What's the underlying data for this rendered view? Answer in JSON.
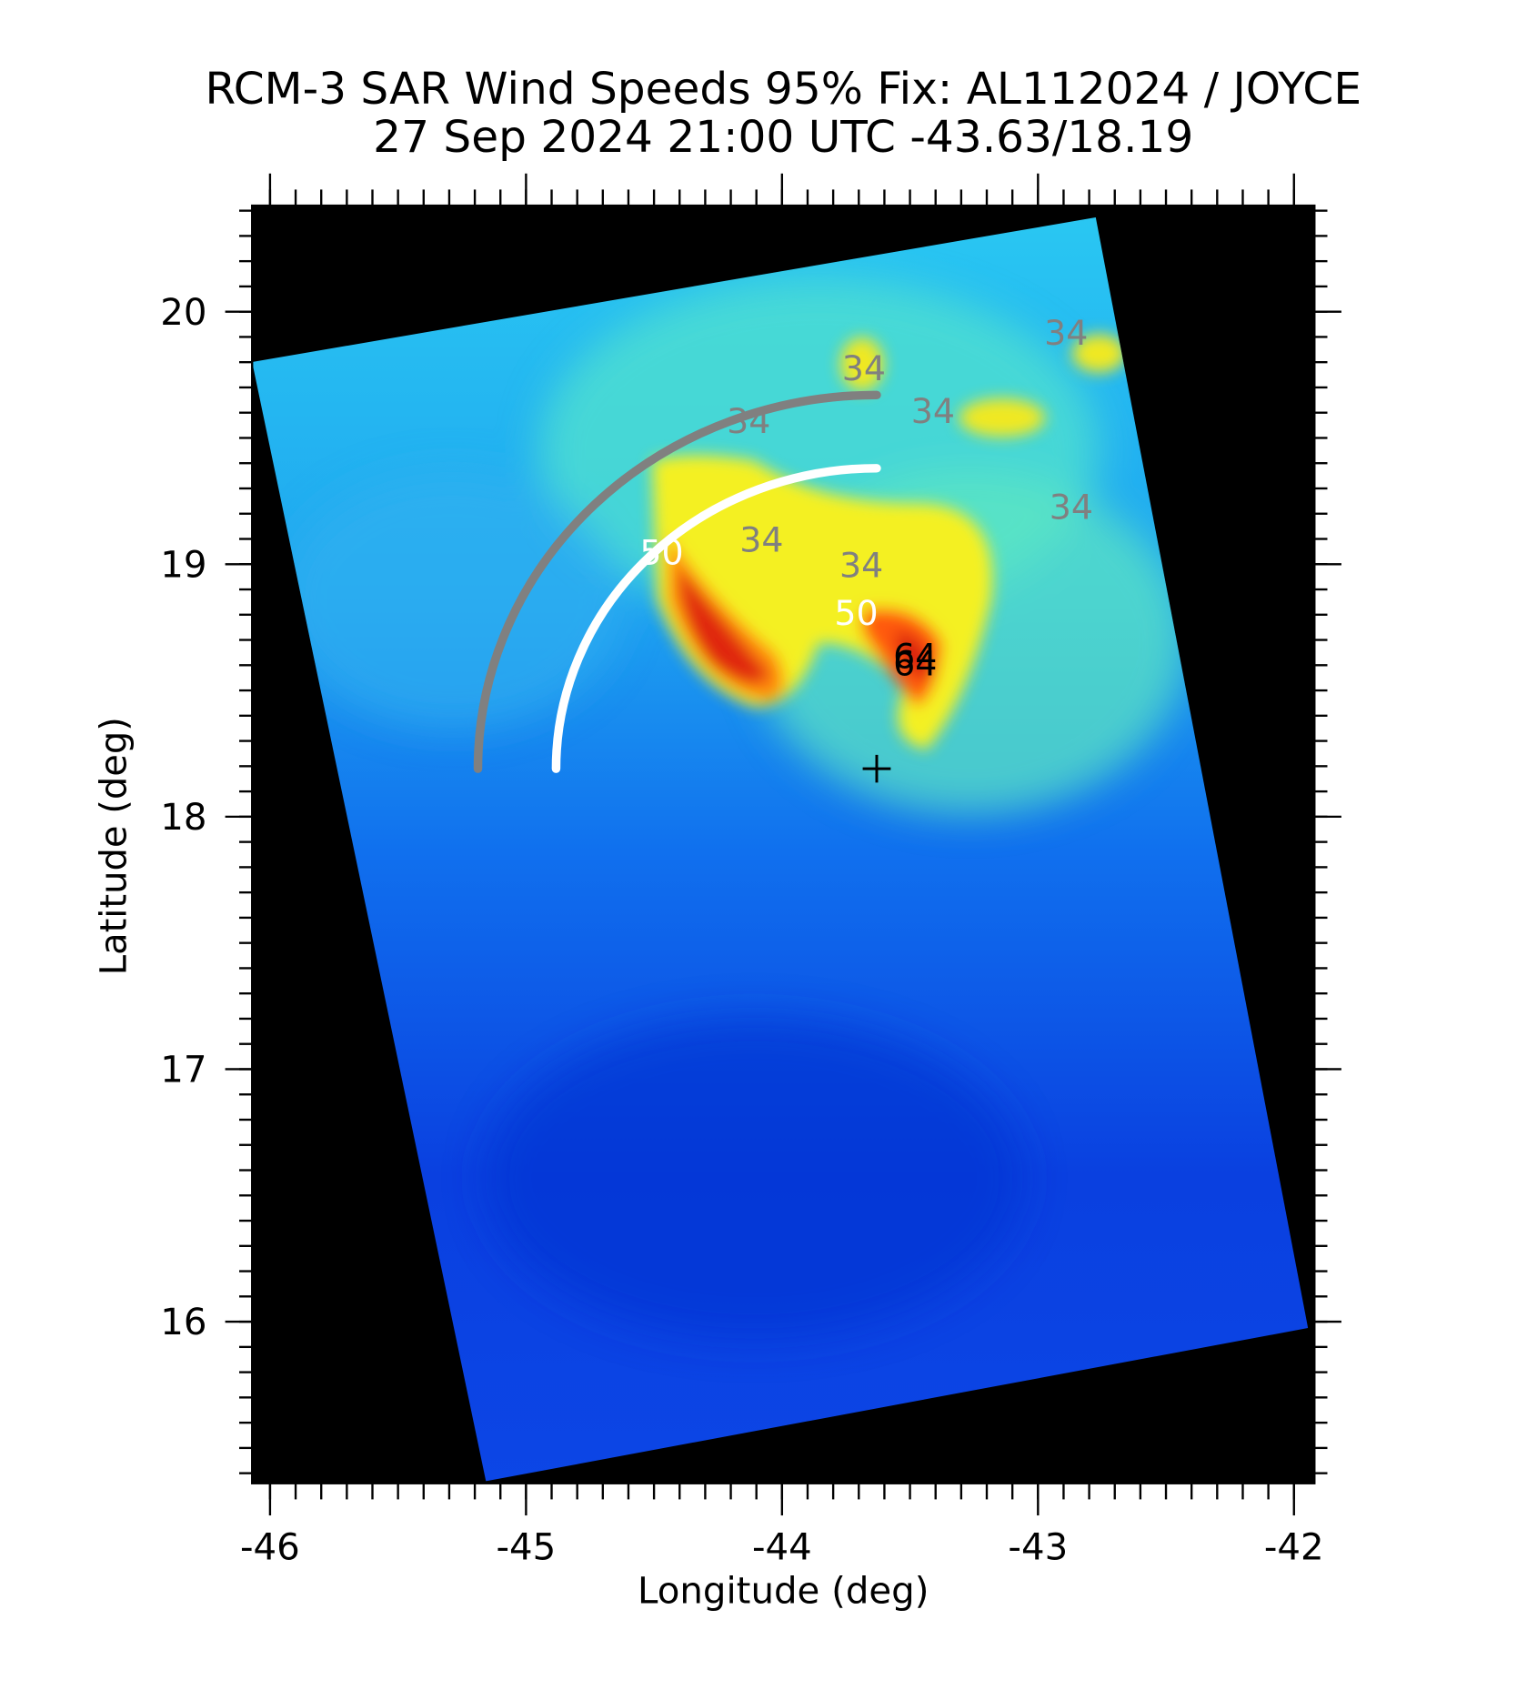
{
  "chart_data": {
    "type": "wind-map",
    "title": "RCM-3 SAR Wind Speeds 95% Fix: AL112024 / JOYCE",
    "subtitle": "27 Sep 2024 21:00 UTC  -43.63/18.19",
    "x_label": "Longitude (deg)",
    "y_label": "Latitude (deg)",
    "xlim": [
      -46.07,
      -41.92
    ],
    "ylim": [
      15.36,
      20.42
    ],
    "xticks": [
      -46,
      -45,
      -44,
      -43,
      -42
    ],
    "yticks": [
      16,
      17,
      18,
      19,
      20
    ],
    "minor_tick_step": 0.1,
    "center": {
      "lon": -43.63,
      "lat": 18.19
    },
    "wind_radii": [
      {
        "color": "#808080",
        "radius": 1.48
      },
      {
        "color": "#ffffff",
        "radius": 1.19
      }
    ],
    "contour_labels": [
      {
        "text": "34",
        "color": "#808080",
        "lon": -43.68,
        "lat": 19.78
      },
      {
        "text": "34",
        "color": "#808080",
        "lon": -44.13,
        "lat": 19.57
      },
      {
        "text": "34",
        "color": "#808080",
        "lon": -43.41,
        "lat": 19.61
      },
      {
        "text": "34",
        "color": "#808080",
        "lon": -42.89,
        "lat": 19.92
      },
      {
        "text": "34",
        "color": "#808080",
        "lon": -42.87,
        "lat": 19.23
      },
      {
        "text": "34",
        "color": "#808080",
        "lon": -44.08,
        "lat": 19.1
      },
      {
        "text": "34",
        "color": "#808080",
        "lon": -43.69,
        "lat": 19.0
      },
      {
        "text": "50",
        "color": "#ffffff",
        "lon": -44.47,
        "lat": 19.05
      },
      {
        "text": "50",
        "color": "#ffffff",
        "lon": -43.71,
        "lat": 18.81
      },
      {
        "text": "64",
        "color": "#000000",
        "lon": -43.48,
        "lat": 18.64
      },
      {
        "text": "64",
        "color": "#000000",
        "lon": -43.48,
        "lat": 18.61
      }
    ]
  }
}
